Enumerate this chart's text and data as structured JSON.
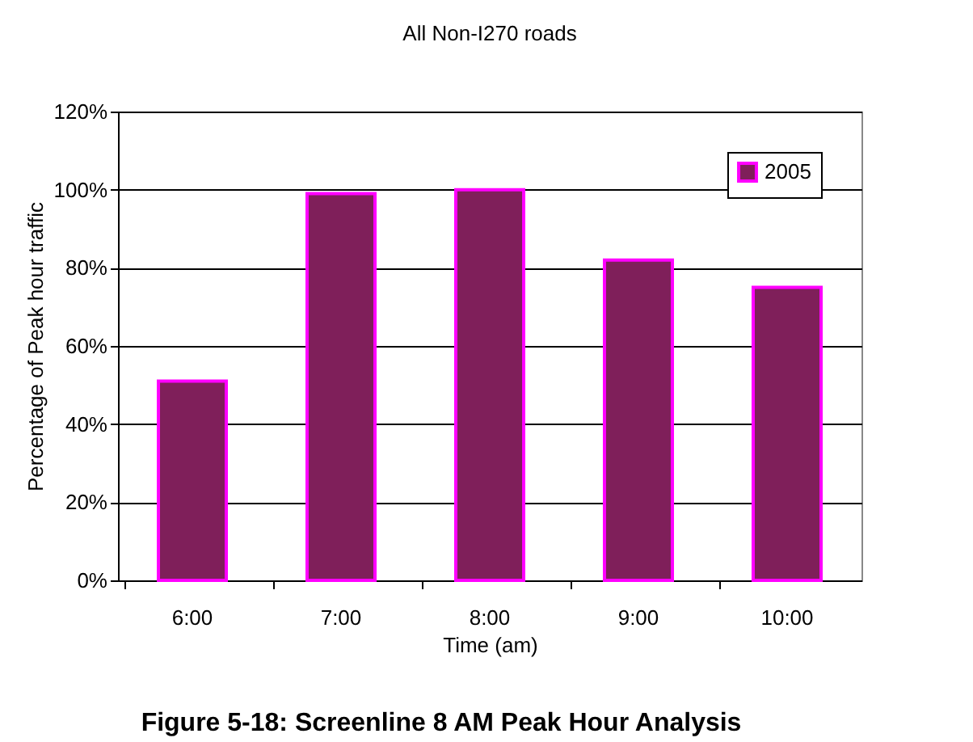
{
  "chart_data": {
    "type": "bar",
    "title": "All Non-I270 roads",
    "xlabel": "Time (am)",
    "ylabel": "Percentage of Peak hour traffic",
    "categories": [
      "6:00",
      "7:00",
      "8:00",
      "9:00",
      "10:00"
    ],
    "series": [
      {
        "name": "2005",
        "color": "#7f1f5a",
        "values": [
          51,
          99,
          100,
          82,
          75
        ]
      }
    ],
    "ylim": [
      0,
      120
    ],
    "yticks": [
      {
        "value": 0,
        "label": "0%"
      },
      {
        "value": 20,
        "label": "20%"
      },
      {
        "value": 40,
        "label": "40%"
      },
      {
        "value": 60,
        "label": "60%"
      },
      {
        "value": 80,
        "label": "80%"
      },
      {
        "value": 100,
        "label": "100%"
      },
      {
        "value": 120,
        "label": "120%"
      }
    ],
    "grid": "y",
    "legend": "top right",
    "annotations": [
      "Figure 5-18: Screenline 8 AM Peak Hour Analysis"
    ]
  }
}
